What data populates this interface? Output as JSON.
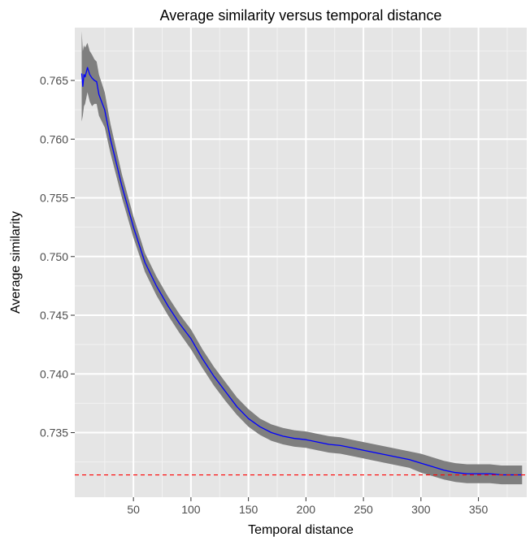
{
  "chart_data": {
    "type": "line",
    "title": "Average similarity versus temporal distance",
    "xlabel": "Temporal distance",
    "ylabel": "Average similarity",
    "xlim": [
      -1,
      392
    ],
    "ylim": [
      0.7295,
      0.7695
    ],
    "x_ticks": [
      50,
      100,
      150,
      200,
      250,
      300,
      350
    ],
    "y_ticks": [
      0.735,
      0.74,
      0.745,
      0.75,
      0.755,
      0.76,
      0.765
    ],
    "grid": true,
    "legend": "none",
    "series": [
      {
        "color": "#0000ff",
        "ribbon_color": "#7f7f7f",
        "x": [
          5,
          6,
          7,
          8,
          10,
          12,
          14,
          16,
          18,
          20,
          25,
          30,
          40,
          50,
          60,
          70,
          80,
          90,
          100,
          110,
          120,
          130,
          140,
          150,
          160,
          170,
          180,
          190,
          200,
          210,
          220,
          230,
          240,
          250,
          260,
          270,
          280,
          290,
          300,
          310,
          320,
          330,
          340,
          350,
          360,
          370,
          380,
          388
        ],
        "values": [
          0.7656,
          0.7645,
          0.7655,
          0.7653,
          0.7661,
          0.7655,
          0.7652,
          0.765,
          0.7649,
          0.7638,
          0.7625,
          0.76,
          0.756,
          0.7525,
          0.7495,
          0.7475,
          0.7458,
          0.7443,
          0.743,
          0.7413,
          0.7398,
          0.7385,
          0.7372,
          0.7362,
          0.7355,
          0.735,
          0.7347,
          0.7345,
          0.7344,
          0.7342,
          0.734,
          0.7339,
          0.7337,
          0.7335,
          0.7333,
          0.7331,
          0.7329,
          0.7327,
          0.7324,
          0.7321,
          0.7318,
          0.7316,
          0.7315,
          0.7315,
          0.7315,
          0.7314,
          0.7314,
          0.7314
        ],
        "lower": [
          0.7615,
          0.762,
          0.7628,
          0.763,
          0.764,
          0.7632,
          0.7628,
          0.763,
          0.763,
          0.762,
          0.761,
          0.7588,
          0.755,
          0.7516,
          0.7487,
          0.7467,
          0.745,
          0.7435,
          0.7421,
          0.7405,
          0.739,
          0.7377,
          0.7365,
          0.7355,
          0.7348,
          0.7343,
          0.734,
          0.7338,
          0.7337,
          0.7335,
          0.7333,
          0.7332,
          0.733,
          0.7328,
          0.7326,
          0.7324,
          0.7322,
          0.732,
          0.7316,
          0.7313,
          0.731,
          0.7308,
          0.7307,
          0.7307,
          0.7307,
          0.7306,
          0.7306,
          0.7306
        ],
        "upper": [
          0.7692,
          0.7675,
          0.768,
          0.7678,
          0.7682,
          0.7675,
          0.7672,
          0.7668,
          0.7666,
          0.7655,
          0.764,
          0.7613,
          0.757,
          0.7534,
          0.7503,
          0.7483,
          0.7466,
          0.7451,
          0.7438,
          0.7421,
          0.7406,
          0.7393,
          0.738,
          0.737,
          0.7362,
          0.7357,
          0.7354,
          0.7352,
          0.7351,
          0.7349,
          0.7347,
          0.7346,
          0.7344,
          0.7342,
          0.734,
          0.7338,
          0.7336,
          0.7334,
          0.7332,
          0.7329,
          0.7326,
          0.7324,
          0.7323,
          0.7323,
          0.7323,
          0.7322,
          0.7322,
          0.7322
        ]
      }
    ],
    "reference_line": {
      "orientation": "horizontal",
      "y": 0.7314,
      "color": "#ff0000",
      "style": "dashed"
    }
  }
}
